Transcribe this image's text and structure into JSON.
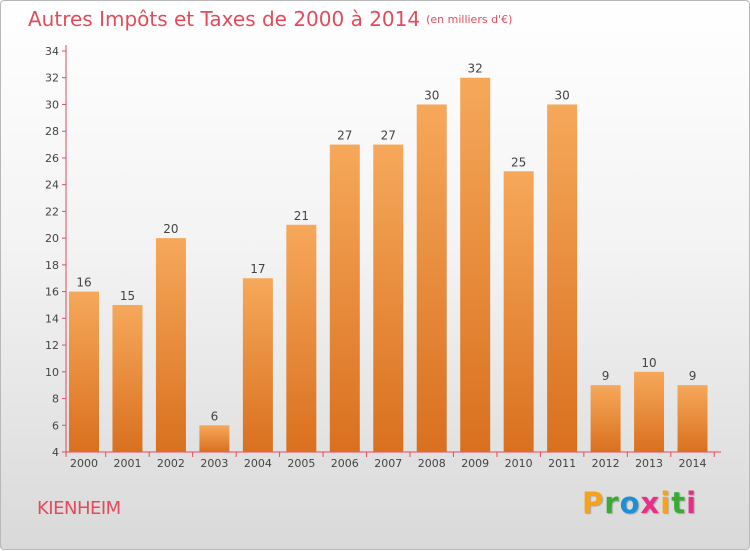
{
  "title": "Autres Impôts et Taxes de 2000 à 2014",
  "subtitle": "(en milliers d'€)",
  "location": "KIENHEIM",
  "brand": {
    "letters": [
      "P",
      "r",
      "o",
      "x",
      "i",
      "t",
      "i"
    ],
    "colors": [
      "#f7a21b",
      "#3aaa35",
      "#1d8fd6",
      "#e62f8a",
      "#f7a21b",
      "#3aaa35",
      "#e62f8a"
    ]
  },
  "chart_data": {
    "type": "bar",
    "title": "Autres Impôts et Taxes de 2000 à 2014",
    "categories": [
      "2000",
      "2001",
      "2002",
      "2003",
      "2004",
      "2005",
      "2006",
      "2007",
      "2008",
      "2009",
      "2010",
      "2011",
      "2012",
      "2013",
      "2014"
    ],
    "values": [
      16,
      15,
      20,
      6,
      17,
      21,
      27,
      27,
      30,
      32,
      25,
      30,
      9,
      10,
      9
    ],
    "ylim": [
      4,
      34
    ],
    "yticks": [
      4,
      6,
      8,
      10,
      12,
      14,
      16,
      18,
      20,
      22,
      24,
      26,
      28,
      30,
      32,
      34
    ],
    "grid": false,
    "bar_color_top": "#f6a85a",
    "bar_color_bottom": "#d9701f",
    "axis_color": "#e64a5a"
  }
}
